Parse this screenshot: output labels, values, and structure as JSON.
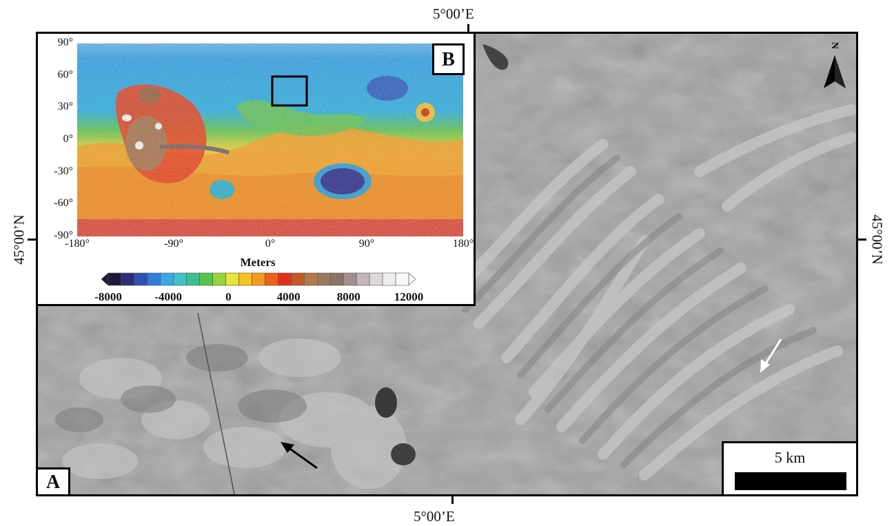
{
  "panels": {
    "main_label": "A",
    "inset_label": "B"
  },
  "coordinates": {
    "top_lon": "5°00’E",
    "bottom_lon": "5°00’E",
    "left_lat": "45°00’N",
    "right_lat": "45°00’N"
  },
  "north_arrow": {
    "label": "N"
  },
  "scale_bar": {
    "label": "5 km"
  },
  "inset_map": {
    "y_ticks": [
      "90°",
      "60°",
      "30°",
      "0°",
      "-30°",
      "-60°",
      "-90°"
    ],
    "x_ticks": [
      "-180°",
      "-90°",
      "0°",
      "90°",
      "180°"
    ],
    "colorbar_title": "Meters",
    "colorbar_ticks": [
      "-8000",
      "-4000",
      "0",
      "4000",
      "8000",
      "12000"
    ],
    "colorbar_colors": [
      "#1c1a3a",
      "#2b2f78",
      "#2e52b0",
      "#2f7fd8",
      "#38a8e6",
      "#3cc2c8",
      "#3dbf8a",
      "#55c44a",
      "#9ad23a",
      "#e8e43a",
      "#f6c21e",
      "#f59a1e",
      "#ee5e1c",
      "#e0321a",
      "#c25a28",
      "#b27a48",
      "#9a7a5c",
      "#8a7468",
      "#a08e90",
      "#c2b6b8",
      "#dcd8d8",
      "#eeeeee",
      "#f8f8f8"
    ]
  },
  "arrows": {
    "black_arrow": "black",
    "white_arrow": "white"
  }
}
